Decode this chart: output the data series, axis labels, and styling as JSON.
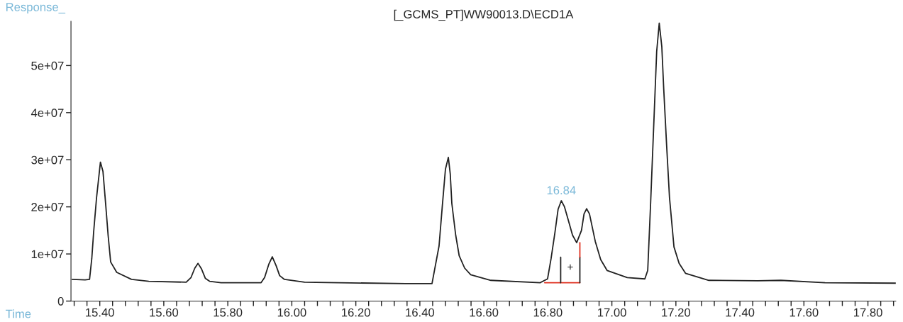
{
  "chart_data": {
    "type": "line",
    "title": "[_GCMS_PT]WW90013.D\\ECD1A",
    "xlabel": "Time",
    "ylabel": "Response_",
    "xlim": [
      15.31,
      17.887
    ],
    "ylim": [
      0,
      59400000
    ],
    "xticks": [
      {
        "value": 15.32,
        "label": null
      },
      {
        "value": 15.36,
        "label": null
      },
      {
        "value": 15.4,
        "label": "15.40"
      },
      {
        "value": 15.44,
        "label": null
      },
      {
        "value": 15.48,
        "label": null
      },
      {
        "value": 15.52,
        "label": null
      },
      {
        "value": 15.56,
        "label": null
      },
      {
        "value": 15.6,
        "label": "15.60"
      },
      {
        "value": 15.64,
        "label": null
      },
      {
        "value": 15.68,
        "label": null
      },
      {
        "value": 15.72,
        "label": null
      },
      {
        "value": 15.76,
        "label": null
      },
      {
        "value": 15.8,
        "label": "15.80"
      },
      {
        "value": 15.84,
        "label": null
      },
      {
        "value": 15.88,
        "label": null
      },
      {
        "value": 15.92,
        "label": null
      },
      {
        "value": 15.96,
        "label": null
      },
      {
        "value": 16.0,
        "label": "16.00"
      },
      {
        "value": 16.04,
        "label": null
      },
      {
        "value": 16.08,
        "label": null
      },
      {
        "value": 16.12,
        "label": null
      },
      {
        "value": 16.16,
        "label": null
      },
      {
        "value": 16.2,
        "label": "16.20"
      },
      {
        "value": 16.24,
        "label": null
      },
      {
        "value": 16.28,
        "label": null
      },
      {
        "value": 16.32,
        "label": null
      },
      {
        "value": 16.36,
        "label": null
      },
      {
        "value": 16.4,
        "label": "16.40"
      },
      {
        "value": 16.44,
        "label": null
      },
      {
        "value": 16.48,
        "label": null
      },
      {
        "value": 16.52,
        "label": null
      },
      {
        "value": 16.56,
        "label": null
      },
      {
        "value": 16.6,
        "label": "16.60"
      },
      {
        "value": 16.64,
        "label": null
      },
      {
        "value": 16.68,
        "label": null
      },
      {
        "value": 16.72,
        "label": null
      },
      {
        "value": 16.76,
        "label": null
      },
      {
        "value": 16.8,
        "label": "16.80"
      },
      {
        "value": 16.84,
        "label": null
      },
      {
        "value": 16.88,
        "label": null
      },
      {
        "value": 16.92,
        "label": null
      },
      {
        "value": 16.96,
        "label": null
      },
      {
        "value": 17.0,
        "label": "17.00"
      },
      {
        "value": 17.04,
        "label": null
      },
      {
        "value": 17.08,
        "label": null
      },
      {
        "value": 17.12,
        "label": null
      },
      {
        "value": 17.16,
        "label": null
      },
      {
        "value": 17.2,
        "label": "17.20"
      },
      {
        "value": 17.24,
        "label": null
      },
      {
        "value": 17.28,
        "label": null
      },
      {
        "value": 17.32,
        "label": null
      },
      {
        "value": 17.36,
        "label": null
      },
      {
        "value": 17.4,
        "label": "17.40"
      },
      {
        "value": 17.44,
        "label": null
      },
      {
        "value": 17.48,
        "label": null
      },
      {
        "value": 17.52,
        "label": null
      },
      {
        "value": 17.56,
        "label": null
      },
      {
        "value": 17.6,
        "label": "17.60"
      },
      {
        "value": 17.64,
        "label": null
      },
      {
        "value": 17.68,
        "label": null
      },
      {
        "value": 17.72,
        "label": null
      },
      {
        "value": 17.76,
        "label": null
      },
      {
        "value": 17.8,
        "label": "17.80"
      },
      {
        "value": 17.84,
        "label": null
      },
      {
        "value": 17.88,
        "label": null
      }
    ],
    "yticks": [
      0,
      {
        "value": 10000000,
        "label": "1e+07"
      },
      {
        "value": 20000000,
        "label": "2e+07"
      },
      {
        "value": 30000000,
        "label": "3e+07"
      },
      {
        "value": 40000000,
        "label": "4e+07"
      },
      {
        "value": 50000000,
        "label": "5e+07"
      }
    ],
    "grid": false,
    "marker": "none",
    "line_style": "solid",
    "series": [
      {
        "color": "#222222",
        "x": [
          15.314,
          15.354,
          15.368,
          15.375,
          15.381,
          15.39,
          15.402,
          15.41,
          15.418,
          15.426,
          15.434,
          15.453,
          15.499,
          15.553,
          15.67,
          15.685,
          15.697,
          15.707,
          15.718,
          15.73,
          15.743,
          15.779,
          15.904,
          15.915,
          15.928,
          15.939,
          15.951,
          15.962,
          15.977,
          16.04,
          16.356,
          16.438,
          16.46,
          16.47,
          16.48,
          16.489,
          16.495,
          16.5,
          16.512,
          16.523,
          16.54,
          16.559,
          16.622,
          16.776,
          16.799,
          16.81,
          16.822,
          16.832,
          16.842,
          16.852,
          16.862,
          16.877,
          16.89,
          16.905,
          16.913,
          16.921,
          16.93,
          16.948,
          16.965,
          16.985,
          17.048,
          17.103,
          17.112,
          17.121,
          17.13,
          17.14,
          17.148,
          17.156,
          17.162,
          17.171,
          17.18,
          17.194,
          17.21,
          17.23,
          17.303,
          17.456,
          17.528,
          17.666,
          17.887
        ],
        "values": [
          4600000,
          4500000,
          4600000,
          9000000,
          14800000,
          22000000,
          29500000,
          27500000,
          20900000,
          14000000,
          8300000,
          6100000,
          4600000,
          4200000,
          4000000,
          5000000,
          7000000,
          8000000,
          6800000,
          4800000,
          4200000,
          3900000,
          3900000,
          5000000,
          7800000,
          9400000,
          7500000,
          5400000,
          4600000,
          4000000,
          3700000,
          3700000,
          11700000,
          20000000,
          28000000,
          30500000,
          27000000,
          20700000,
          14000000,
          9600000,
          7000000,
          5600000,
          4400000,
          3900000,
          4700000,
          9000000,
          14500000,
          19500000,
          21300000,
          20000000,
          17600000,
          14000000,
          12400000,
          15000000,
          18500000,
          19600000,
          18500000,
          12700000,
          8800000,
          6500000,
          5000000,
          4700000,
          6500000,
          20700000,
          36000000,
          53000000,
          59000000,
          54000000,
          45000000,
          33100000,
          22000000,
          11500000,
          8000000,
          5900000,
          4400000,
          4300000,
          4400000,
          3900000,
          3800000
        ]
      },
      {
        "color": "#e03020",
        "x": [
          16.79,
          16.9
        ],
        "values": [
          3900000,
          3900000
        ]
      },
      {
        "color": "#222222",
        "x": [
          16.84,
          16.84
        ],
        "values": [
          3900000,
          9300000
        ]
      },
      {
        "color": "#222222",
        "x": [
          16.9,
          16.9
        ],
        "values": [
          3900000,
          9300000
        ]
      },
      {
        "color": "#e03020",
        "x": [
          16.9,
          16.9
        ],
        "values": [
          9300000,
          12400000
        ]
      }
    ],
    "annotations": [
      {
        "text": "16.84",
        "x": 16.842,
        "y": 21300000
      },
      {
        "text": "+",
        "x": 16.87,
        "y": 3900000
      }
    ]
  }
}
